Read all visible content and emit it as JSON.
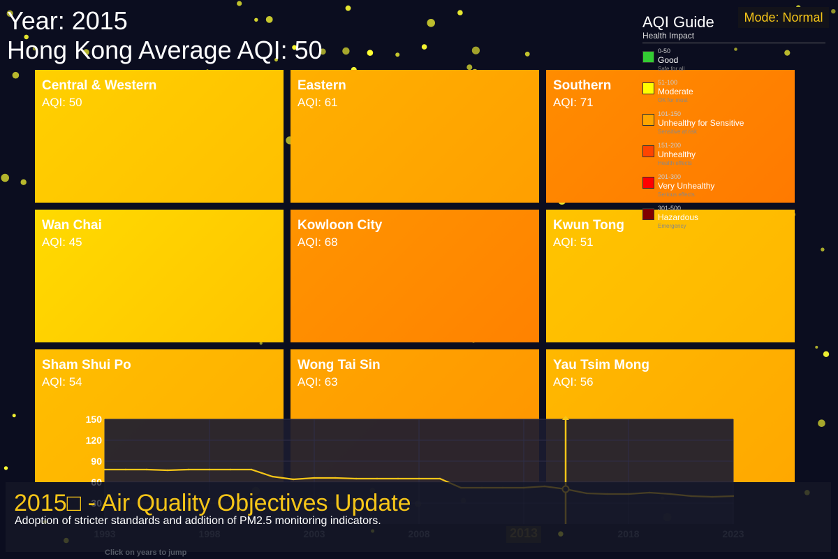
{
  "header": {
    "year_label": "Year: 2015",
    "average_label": "Hong Kong Average AQI: 50"
  },
  "mode_button": {
    "label": "Mode: Normal"
  },
  "districts": [
    {
      "name": "Central & Western",
      "aqi_label": "AQI: 50",
      "aqi": 50,
      "color_from": "#ffd000",
      "color_to": "#ffbf00"
    },
    {
      "name": "Eastern",
      "aqi_label": "AQI: 61",
      "aqi": 61,
      "color_from": "#ffb000",
      "color_to": "#ff9f00"
    },
    {
      "name": "Southern",
      "aqi_label": "AQI: 71",
      "aqi": 71,
      "color_from": "#ff8c00",
      "color_to": "#ff7a00"
    },
    {
      "name": "Wan Chai",
      "aqi_label": "AQI: 45",
      "aqi": 45,
      "color_from": "#ffda00",
      "color_to": "#ffc400"
    },
    {
      "name": "Kowloon City",
      "aqi_label": "AQI: 68",
      "aqi": 68,
      "color_from": "#ff9400",
      "color_to": "#ff8200"
    },
    {
      "name": "Kwun Tong",
      "aqi_label": "AQI: 51",
      "aqi": 51,
      "color_from": "#ffc400",
      "color_to": "#ffb600"
    },
    {
      "name": "Sham Shui Po",
      "aqi_label": "AQI: 54",
      "aqi": 54,
      "color_from": "#ffbe00",
      "color_to": "#ffae00"
    },
    {
      "name": "Wong Tai Sin",
      "aqi_label": "AQI: 63",
      "aqi": 63,
      "color_from": "#ffa500",
      "color_to": "#ff9500"
    },
    {
      "name": "Yau Tsim Mong",
      "aqi_label": "AQI: 56",
      "aqi": 56,
      "color_from": "#ffb800",
      "color_to": "#ffa800"
    }
  ],
  "legend": {
    "title": "AQI Guide",
    "subtitle": "Health Impact",
    "items": [
      {
        "range": "0-50",
        "category": "Good",
        "description": "Safe for all",
        "color": "#33cc33"
      },
      {
        "range": "51-100",
        "category": "Moderate",
        "description": "OK for most",
        "color": "#ffff00"
      },
      {
        "range": "101-150",
        "category": "Unhealthy for Sensitive",
        "description": "Sensitive at risk",
        "color": "#ffa500"
      },
      {
        "range": "151-200",
        "category": "Unhealthy",
        "description": "Health effects",
        "color": "#ff4500"
      },
      {
        "range": "201-300",
        "category": "Very Unhealthy",
        "description": "Serious effects",
        "color": "#ff0000"
      },
      {
        "range": "301-500",
        "category": "Hazardous",
        "description": "Emergency",
        "color": "#800000"
      }
    ]
  },
  "chart_data": {
    "type": "line",
    "title": "",
    "xlabel": "",
    "ylabel": "",
    "xlim": [
      1993,
      2023
    ],
    "ylim": [
      0,
      150
    ],
    "y_ticks": [
      150,
      120,
      90,
      60,
      30
    ],
    "x_tick_labels": [
      "1993",
      "1998",
      "2003",
      "2008",
      "2013",
      "2018",
      "2023"
    ],
    "highlighted_tick": "2013",
    "grid": true,
    "line_color": "#f5c518",
    "selected_year": 2015,
    "series": [
      {
        "name": "",
        "x": [
          1993,
          1994,
          1995,
          1996,
          1997,
          1998,
          1999,
          2000,
          2001,
          2002,
          2003,
          2004,
          2005,
          2006,
          2007,
          2008,
          2009,
          2010,
          2011,
          2012,
          2013,
          2014,
          2015,
          2016,
          2017,
          2018,
          2019,
          2020,
          2021,
          2022,
          2023
        ],
        "y": [
          78,
          78,
          78,
          77,
          78,
          78,
          78,
          78,
          68,
          64,
          66,
          66,
          65,
          65,
          65,
          65,
          65,
          52,
          52,
          52,
          52,
          54,
          50,
          44,
          43,
          43,
          45,
          43,
          40,
          39,
          40
        ]
      }
    ]
  },
  "event": {
    "title": "2015□ - Air Quality Objectives Update",
    "description": "Adoption of stricter standards and addition of PM2.5 monitoring indicators."
  },
  "timeline_hint": "Click on years to jump",
  "particle_color": "#ffff33"
}
